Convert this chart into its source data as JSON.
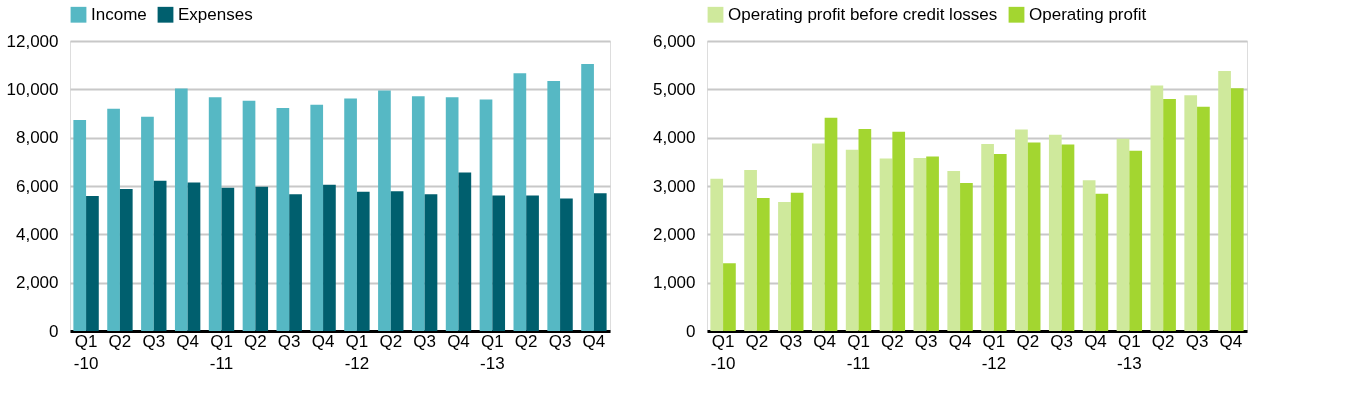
{
  "chart_data": [
    {
      "type": "bar",
      "categories": [
        "Q1\n-10",
        "Q2",
        "Q3",
        "Q4",
        "Q1\n-11",
        "Q2",
        "Q3",
        "Q4",
        "Q1\n-12",
        "Q2",
        "Q3",
        "Q4",
        "Q1\n-13",
        "Q2",
        "Q3",
        "Q4"
      ],
      "series": [
        {
          "name": "Income",
          "color": "#56b8c4",
          "values": [
            8730,
            9200,
            8870,
            10030,
            9670,
            9530,
            9230,
            9360,
            9620,
            9950,
            9710,
            9670,
            9580,
            10670,
            10350,
            11050
          ]
        },
        {
          "name": "Expenses",
          "color": "#005f6e",
          "values": [
            5590,
            5880,
            6220,
            6150,
            5930,
            5970,
            5660,
            6050,
            5760,
            5780,
            5660,
            6560,
            5610,
            5610,
            5480,
            5700
          ]
        }
      ],
      "ylim": [
        0,
        12000
      ],
      "yticks": [
        {
          "value": 0,
          "label": "0"
        },
        {
          "value": 2000,
          "label": "2,000"
        },
        {
          "value": 4000,
          "label": "4,000"
        },
        {
          "value": 6000,
          "label": "6,000"
        },
        {
          "value": 8000,
          "label": "8,000"
        },
        {
          "value": 10000,
          "label": "10,000"
        },
        {
          "value": 12000,
          "label": "12,000"
        }
      ],
      "grid": "y",
      "legend": "top"
    },
    {
      "type": "bar",
      "categories": [
        "Q1\n-10",
        "Q2",
        "Q3",
        "Q4",
        "Q1\n-11",
        "Q2",
        "Q3",
        "Q4",
        "Q1\n-12",
        "Q2",
        "Q3",
        "Q4",
        "Q1\n-13",
        "Q2",
        "Q3",
        "Q4"
      ],
      "series": [
        {
          "name": "Operating profit before credit losses",
          "color": "#cfe99c",
          "values": [
            3150,
            3330,
            2670,
            3880,
            3750,
            3570,
            3580,
            3310,
            3870,
            4170,
            4060,
            3120,
            3980,
            5080,
            4880,
            5380
          ]
        },
        {
          "name": "Operating profit",
          "color": "#a3d630",
          "values": [
            1400,
            2750,
            2860,
            4410,
            4180,
            4120,
            3610,
            3060,
            3660,
            3900,
            3860,
            2840,
            3730,
            4800,
            4640,
            5020
          ]
        }
      ],
      "ylim": [
        0,
        6000
      ],
      "yticks": [
        {
          "value": 0,
          "label": "0"
        },
        {
          "value": 1000,
          "label": "1,000"
        },
        {
          "value": 2000,
          "label": "2,000"
        },
        {
          "value": 3000,
          "label": "3,000"
        },
        {
          "value": 4000,
          "label": "4,000"
        },
        {
          "value": 5000,
          "label": "5,000"
        },
        {
          "value": 6000,
          "label": "6,000"
        }
      ],
      "grid": "y",
      "legend": "top"
    }
  ]
}
